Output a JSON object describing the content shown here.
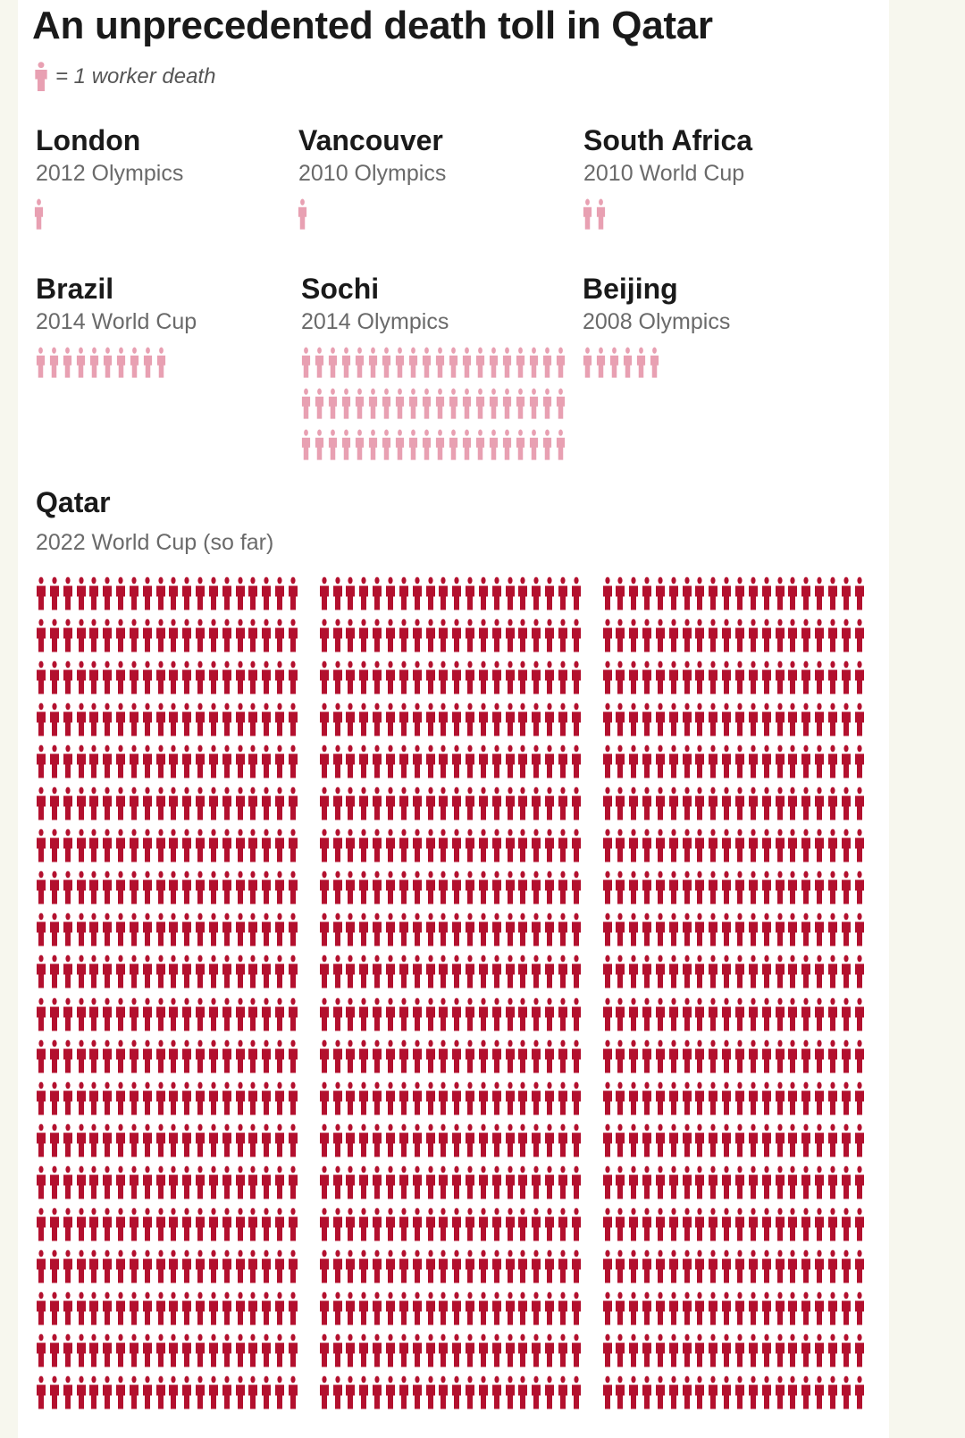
{
  "title": "An unprecedented death toll in Qatar",
  "legend": {
    "label": "= 1 worker death",
    "icon": "person-icon"
  },
  "colors": {
    "light_figure": "#e8a0b2",
    "dark_figure": "#b3102e",
    "background": "#f7f7ee",
    "card": "#ffffff",
    "title": "#1a1a1a",
    "subtitle": "#6a6a6a"
  },
  "events": {
    "london": {
      "name": "London",
      "event": "2012 Olympics",
      "deaths": 1
    },
    "vancouver": {
      "name": "Vancouver",
      "event": "2010 Olympics",
      "deaths": 1
    },
    "south_africa": {
      "name": "South Africa",
      "event": "2010 World Cup",
      "deaths": 2
    },
    "brazil": {
      "name": "Brazil",
      "event": "2014 World Cup",
      "deaths": 10
    },
    "sochi": {
      "name": "Sochi",
      "event": "2014 Olympics",
      "deaths": 60
    },
    "beijing": {
      "name": "Beijing",
      "event": "2008 Olympics",
      "deaths": 6
    },
    "qatar": {
      "name": "Qatar",
      "event": "2022 World Cup (so far)",
      "deaths": 1200
    }
  },
  "chart_data": {
    "type": "pictogram",
    "title": "An unprecedented death toll in Qatar",
    "unit": "1 worker death",
    "categories": [
      "London 2012 Olympics",
      "Vancouver 2010 Olympics",
      "South Africa 2010 World Cup",
      "Brazil 2014 World Cup",
      "Sochi 2014 Olympics",
      "Beijing 2008 Olympics",
      "Qatar 2022 World Cup (so far)"
    ],
    "values": [
      1,
      1,
      2,
      10,
      60,
      6,
      1200
    ]
  }
}
